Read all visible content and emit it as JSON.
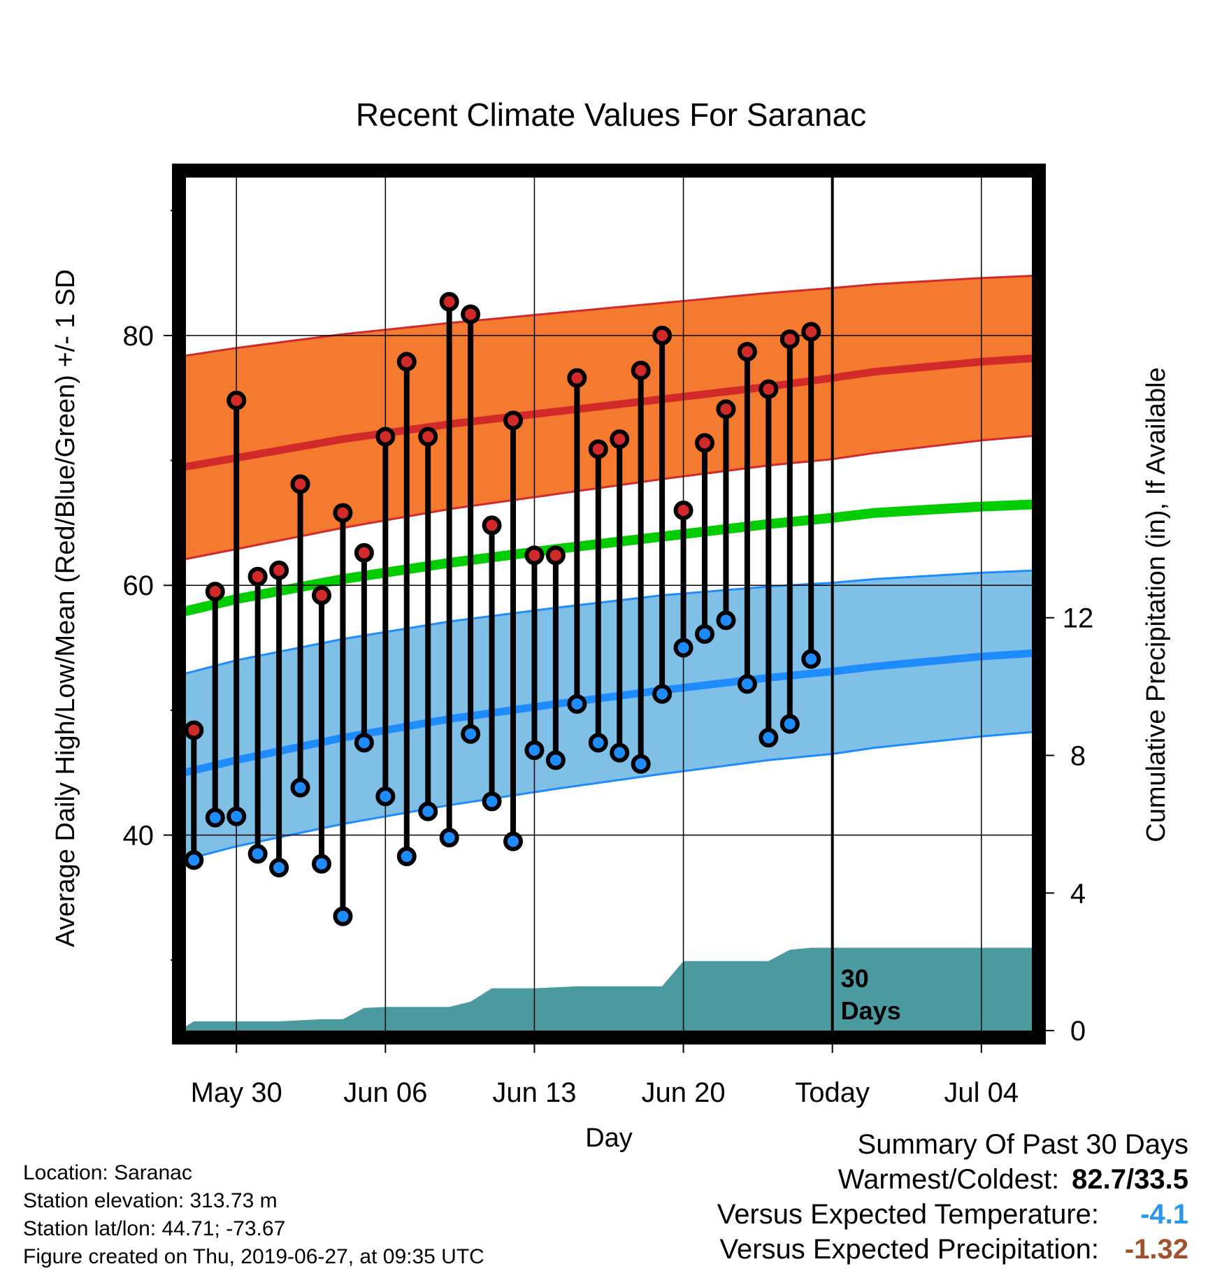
{
  "colors": {
    "normal_high": "#d22a2a",
    "high_band": "#f47a30",
    "normal_low": "#1e8cff",
    "low_band": "#80c0e6",
    "mean": "#00cc00",
    "precip": "#4a9aa0",
    "temp_anomaly": "#2c96ee",
    "precip_anomaly": "#a0522d"
  },
  "chart_data": {
    "type": "line",
    "title": "Recent Climate Values For Saranac",
    "xlabel": "Day",
    "ylabel_left": "Average Daily High/Low/Mean (Red/Blue/Green) +/- 1 SD",
    "ylabel_right": "Cumulative Precipitation (in), If Available",
    "x_tick_labels": [
      "May 30",
      "Jun 06",
      "Jun 13",
      "Jun 20",
      "Today",
      "Jul 04"
    ],
    "x_tick_days": [
      0,
      7,
      14,
      21,
      28,
      35
    ],
    "x_range_days": [
      -2.7,
      37.7
    ],
    "y_left_ticks": [
      40,
      60,
      80
    ],
    "y_left_range": [
      23.8,
      93.2
    ],
    "y_right_ticks": [
      0,
      4,
      8,
      12
    ],
    "y_right_range": [
      -0.2,
      25
    ],
    "today_day": 28,
    "today_note": "30\nDays",
    "grid": true,
    "observations": {
      "days": [
        -2,
        -1,
        0,
        1,
        2,
        3,
        4,
        5,
        6,
        7,
        8,
        9,
        10,
        11,
        12,
        13,
        14,
        15,
        16,
        17,
        18,
        19,
        20,
        21,
        22,
        23,
        24,
        25,
        26,
        27
      ],
      "high": [
        48.4,
        59.5,
        74.8,
        60.7,
        61.2,
        68.1,
        59.2,
        65.8,
        62.6,
        71.9,
        77.9,
        71.9,
        82.7,
        81.7,
        64.8,
        73.2,
        62.4,
        62.4,
        76.6,
        70.9,
        71.7,
        77.2,
        80.0,
        66.0,
        71.4,
        74.1,
        78.7,
        75.7,
        79.7,
        80.3
      ],
      "low": [
        38.0,
        41.4,
        41.5,
        38.5,
        37.4,
        43.8,
        37.7,
        33.5,
        47.4,
        43.1,
        38.3,
        41.9,
        39.8,
        48.1,
        42.7,
        39.5,
        46.8,
        46.0,
        50.5,
        47.4,
        46.6,
        45.7,
        51.3,
        55.0,
        56.1,
        57.2,
        52.1,
        47.8,
        48.9,
        54.1
      ]
    },
    "normals": {
      "days": [
        -2.7,
        0,
        5,
        10,
        15,
        20,
        25,
        28,
        30,
        35,
        37.7
      ],
      "high_mean": [
        69.4,
        70.2,
        71.7,
        72.9,
        73.9,
        74.9,
        75.9,
        76.6,
        77.1,
        77.9,
        78.2
      ],
      "high_sd_upper": [
        78.3,
        79.0,
        80.1,
        81.0,
        81.8,
        82.6,
        83.4,
        83.8,
        84.1,
        84.6,
        84.8
      ],
      "high_sd_lower": [
        62.0,
        62.9,
        64.6,
        66.1,
        67.3,
        68.5,
        69.6,
        70.1,
        70.6,
        71.6,
        72.0
      ],
      "mean": [
        57.8,
        58.9,
        60.5,
        61.8,
        62.9,
        63.9,
        64.9,
        65.4,
        65.8,
        66.3,
        66.5
      ],
      "low_mean": [
        44.9,
        46.0,
        47.8,
        49.3,
        50.5,
        51.6,
        52.6,
        53.1,
        53.5,
        54.3,
        54.6
      ],
      "low_sd_upper": [
        52.8,
        54.0,
        55.7,
        57.1,
        58.2,
        59.2,
        59.9,
        60.2,
        60.5,
        61.0,
        61.2
      ],
      "low_sd_lower": [
        37.9,
        39.1,
        40.9,
        42.4,
        43.7,
        44.9,
        46.0,
        46.5,
        47.0,
        47.9,
        48.3
      ]
    },
    "precipitation": {
      "days": [
        -2.7,
        -2,
        -1,
        0,
        1,
        2,
        3,
        4,
        5,
        6,
        7,
        8,
        9,
        10,
        11,
        12,
        13,
        14,
        15,
        16,
        17,
        18,
        19,
        20,
        21,
        22,
        23,
        24,
        25,
        26,
        27,
        28,
        37.7
      ],
      "cumulative": [
        0.0,
        0.27,
        0.27,
        0.27,
        0.27,
        0.27,
        0.3,
        0.33,
        0.33,
        0.66,
        0.69,
        0.69,
        0.69,
        0.69,
        0.84,
        1.23,
        1.23,
        1.23,
        1.26,
        1.29,
        1.29,
        1.29,
        1.29,
        1.29,
        2.02,
        2.02,
        2.02,
        2.02,
        2.02,
        2.35,
        2.41,
        2.41,
        2.41
      ]
    }
  },
  "info": {
    "location": "Location: Saranac",
    "elevation": "Station elevation: 313.73 m",
    "latlon": "Station lat/lon: 44.71; -73.67",
    "created": "Figure created on Thu, 2019-06-27, at 09:35 UTC"
  },
  "summary": {
    "title": "Summary Of Past 30 Days",
    "warm_cold_label": "Warmest/Coldest:",
    "warm_cold_value": "82.7/33.5",
    "temp_label": "Versus Expected Temperature:",
    "temp_value": "-4.1",
    "precip_label": "Versus Expected Precipitation:",
    "precip_value": "-1.32"
  }
}
